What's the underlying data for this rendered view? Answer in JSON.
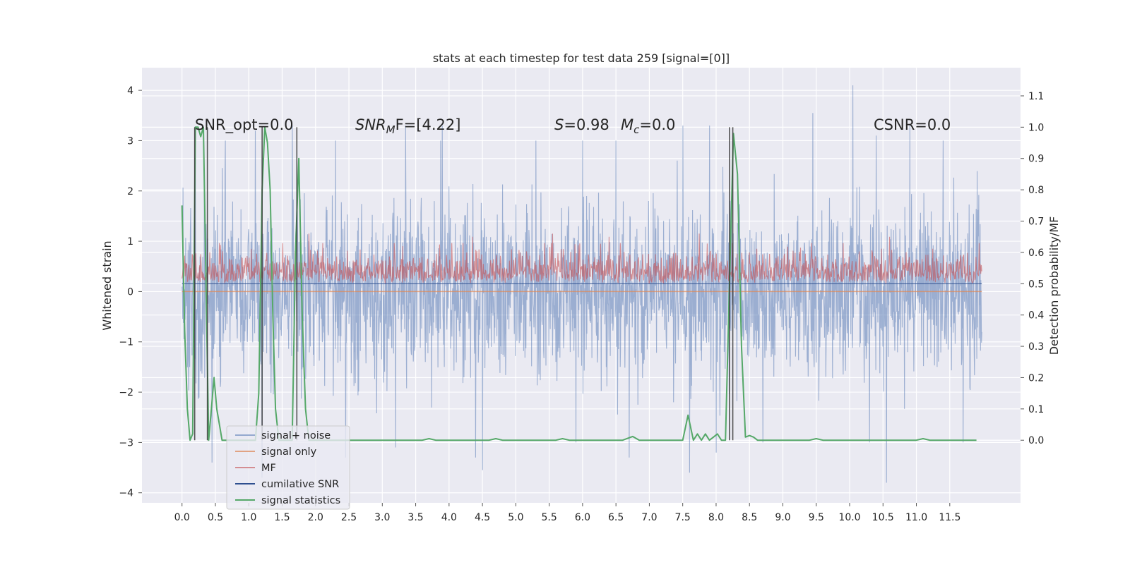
{
  "chart_data": {
    "type": "line",
    "title": "stats at each timestep for test data 259 [signal=[0]]",
    "ylabel_left": "Whitened strain",
    "ylabel_right": "Detection probability/MF",
    "xlim": [
      -0.6,
      12.56
    ],
    "ylim_left": [
      -4.2,
      4.45
    ],
    "ylim_right": [
      -0.2,
      1.19
    ],
    "x_ticks": [
      0.0,
      0.5,
      1.0,
      1.5,
      2.0,
      2.5,
      3.0,
      3.5,
      4.0,
      4.5,
      5.0,
      5.5,
      6.0,
      6.5,
      7.0,
      7.5,
      8.0,
      8.5,
      9.0,
      9.5,
      10.0,
      10.5,
      11.0,
      11.5
    ],
    "x_tick_labels": [
      "0.0",
      "0.5",
      "1.0",
      "1.5",
      "2.0",
      "2.5",
      "3.0",
      "3.5",
      "4.0",
      "4.5",
      "5.0",
      "5.5",
      "6.0",
      "6.5",
      "7.0",
      "7.5",
      "8.0",
      "8.5",
      "9.0",
      "9.5",
      "10.0",
      "10.5",
      "11.0",
      "11.5"
    ],
    "y_left_ticks": [
      4,
      3,
      2,
      1,
      0,
      -1,
      -2,
      -3,
      -4
    ],
    "y_left_tick_labels": [
      "4",
      "3",
      "2",
      "1",
      "0",
      "−1",
      "−2",
      "−3",
      "−4"
    ],
    "y_right_ticks": [
      1.1,
      1.0,
      0.9,
      0.8,
      0.7,
      0.6,
      0.5,
      0.4,
      0.3,
      0.2,
      0.1,
      0.0
    ],
    "y_right_tick_labels": [
      "1.1",
      "1.0",
      "0.9",
      "0.8",
      "0.7",
      "0.6",
      "0.5",
      "0.4",
      "0.3",
      "0.2",
      "0.1",
      "0.0"
    ],
    "grid": true,
    "legend_placement": "lower-left",
    "annotations": {
      "snr_opt": "SNR_opt=0.0",
      "snr_mf_base": "SNR",
      "snr_mf_sub": "M",
      "snr_mf_rest": "F=[4.22]",
      "s_var": "S",
      "s_rest": "=0.98",
      "mc_var": "M",
      "mc_sub": "c",
      "mc_rest": "=0.0",
      "csnr": "CSNR=0.0"
    },
    "series": [
      {
        "name": "signal+ noise",
        "color": "#4c72b0",
        "axis": "left",
        "x_range": [
          0.0,
          11.98
        ],
        "band_typical": [
          -1.4,
          1.4
        ],
        "band_extremes": [
          -3.85,
          4.1
        ],
        "peaks_x": [
          0.2,
          0.65,
          1.1,
          1.65,
          2.3,
          3.35,
          3.9,
          4.4,
          4.5,
          5.3,
          6.0,
          6.5,
          7.5,
          7.9,
          8.7,
          9.45,
          10.05,
          10.4,
          10.9,
          11.4
        ],
        "peaks_y": [
          2.7,
          3.0,
          3.2,
          3.3,
          3.0,
          3.3,
          3.3,
          3.55,
          3.6,
          3.0,
          3.0,
          3.0,
          3.3,
          3.3,
          3.0,
          3.55,
          4.1,
          3.1,
          3.3,
          3.0
        ],
        "troughs_x": [
          0.45,
          1.2,
          2.45,
          3.2,
          4.4,
          4.5,
          5.9,
          6.7,
          7.6,
          8.0,
          8.7,
          10.3,
          10.55,
          11.7
        ],
        "troughs_y": [
          -3.4,
          -3.7,
          -3.3,
          -3.1,
          -3.3,
          -3.55,
          -3.0,
          -3.3,
          -3.6,
          -3.2,
          -3.0,
          -3.0,
          -3.8,
          -3.0
        ]
      },
      {
        "name": "signal only",
        "color": "#dd8452",
        "axis": "left",
        "x": [
          0.0,
          11.98
        ],
        "y": [
          0.0,
          0.0
        ]
      },
      {
        "name": "MF",
        "color": "#c44e52",
        "axis": "right",
        "x_range": [
          0.0,
          11.98
        ],
        "band_typical": [
          0.5,
          0.6
        ],
        "peaks_x": [
          1.9,
          4.35,
          5.55,
          6.4,
          7.75,
          10.6
        ],
        "peaks_y": [
          0.66,
          0.65,
          0.66,
          0.65,
          0.66,
          0.65
        ]
      },
      {
        "name": "cumilative SNR",
        "color": "#2e4f8f",
        "axis": "right",
        "x": [
          0.0,
          11.98
        ],
        "y": [
          0.5,
          0.5
        ]
      },
      {
        "name": "signal statistics",
        "color": "#55a868",
        "axis": "right",
        "x": [
          0.0,
          0.04,
          0.08,
          0.12,
          0.16,
          0.2,
          0.24,
          0.28,
          0.32,
          0.36,
          0.4,
          0.44,
          0.48,
          0.52,
          0.56,
          0.6,
          0.64,
          0.7,
          0.8,
          1.0,
          1.1,
          1.15,
          1.2,
          1.24,
          1.28,
          1.32,
          1.36,
          1.4,
          1.45,
          1.5,
          1.55,
          1.6,
          1.65,
          1.7,
          1.75,
          1.8,
          1.85,
          1.9,
          2.0,
          3.6,
          3.7,
          3.8,
          4.6,
          4.7,
          4.8,
          5.6,
          5.7,
          5.8,
          6.6,
          6.75,
          6.85,
          7.5,
          7.58,
          7.66,
          7.72,
          7.78,
          7.84,
          7.9,
          7.96,
          8.02,
          8.08,
          8.14,
          8.2,
          8.26,
          8.32,
          8.38,
          8.44,
          8.5,
          8.56,
          8.62,
          8.7,
          8.8,
          9.0,
          9.4,
          9.5,
          9.6,
          10.0,
          10.2,
          11.0,
          11.1,
          11.2,
          11.9
        ],
        "y": [
          0.75,
          0.35,
          0.1,
          0.0,
          0.02,
          1.0,
          1.0,
          0.97,
          1.0,
          0.5,
          0.0,
          0.1,
          0.2,
          0.1,
          0.05,
          0.0,
          0.0,
          0.0,
          0.0,
          0.0,
          0.0,
          0.15,
          0.8,
          1.0,
          0.95,
          0.8,
          0.4,
          0.1,
          0.0,
          0.0,
          0.0,
          0.0,
          0.0,
          0.6,
          0.9,
          0.4,
          0.1,
          0.0,
          0.0,
          0.0,
          0.005,
          0.0,
          0.0,
          0.005,
          0.0,
          0.0,
          0.005,
          0.0,
          0.0,
          0.012,
          0.0,
          0.0,
          0.08,
          0.0,
          0.02,
          0.0,
          0.02,
          0.0,
          0.01,
          0.02,
          0.0,
          0.0,
          0.5,
          0.98,
          0.85,
          0.3,
          0.01,
          0.015,
          0.01,
          0.0,
          0.0,
          0.0,
          0.0,
          0.0,
          0.005,
          0.0,
          0.0,
          0.0,
          0.0,
          0.005,
          0.0,
          0.0
        ]
      }
    ],
    "vertical_markers_x": [
      0.19,
      0.38,
      1.2,
      1.72,
      8.2,
      8.25
    ],
    "vertical_markers_color": "#3a3a3a",
    "vertical_markers_range_right": [
      0.0,
      1.0
    ]
  }
}
